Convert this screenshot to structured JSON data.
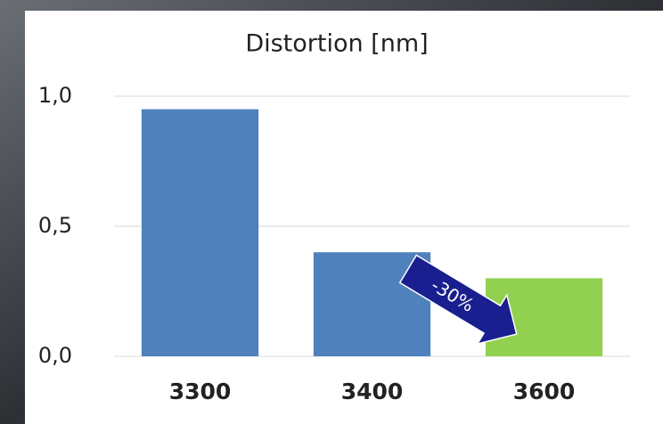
{
  "chart_data": {
    "type": "bar",
    "title": "Distortion [nm]",
    "categories": [
      "3300",
      "3400",
      "3600"
    ],
    "values": [
      0.95,
      0.4,
      0.3
    ],
    "colors": [
      "#4f81bd",
      "#4f81bd",
      "#92d050"
    ],
    "ylim": [
      0,
      1.0
    ],
    "yticks": [
      {
        "value": 0,
        "label": "0,0"
      },
      {
        "value": 0.5,
        "label": "0,5"
      },
      {
        "value": 1.0,
        "label": "1,0"
      }
    ],
    "grid": true,
    "annotation": "-30%"
  }
}
